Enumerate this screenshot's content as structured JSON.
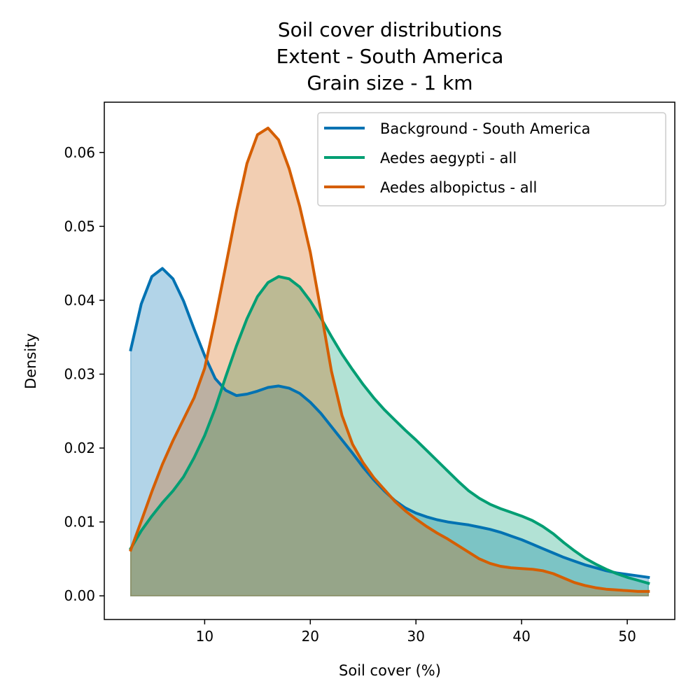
{
  "chart_data": {
    "type": "area",
    "title_lines": [
      "Soil cover distributions",
      "Extent - South America",
      "Grain size - 1 km"
    ],
    "xlabel": "Soil cover (%)",
    "ylabel": "Density",
    "xlim": [
      0.5,
      54.5
    ],
    "ylim": [
      -0.0032,
      0.0668
    ],
    "xticks": [
      10,
      20,
      30,
      40,
      50
    ],
    "xtick_labels": [
      "10",
      "20",
      "30",
      "40",
      "50"
    ],
    "yticks": [
      0.0,
      0.01,
      0.02,
      0.03,
      0.04,
      0.05,
      0.06
    ],
    "ytick_labels": [
      "0.00",
      "0.01",
      "0.02",
      "0.03",
      "0.04",
      "0.05",
      "0.06"
    ],
    "grid": false,
    "legend_position": "top-right",
    "series": [
      {
        "name": "Background - South America",
        "color": "#0072b2",
        "points": [
          [
            3,
            0.0333
          ],
          [
            4,
            0.0395
          ],
          [
            5,
            0.0432
          ],
          [
            6,
            0.0443
          ],
          [
            7,
            0.0429
          ],
          [
            8,
            0.0399
          ],
          [
            9,
            0.0361
          ],
          [
            10,
            0.0325
          ],
          [
            11,
            0.0294
          ],
          [
            12,
            0.0278
          ],
          [
            13,
            0.0271
          ],
          [
            14,
            0.0273
          ],
          [
            15,
            0.0277
          ],
          [
            16,
            0.0282
          ],
          [
            17,
            0.0284
          ],
          [
            18,
            0.0281
          ],
          [
            19,
            0.0274
          ],
          [
            20,
            0.0262
          ],
          [
            21,
            0.0247
          ],
          [
            22,
            0.0229
          ],
          [
            23,
            0.0211
          ],
          [
            24,
            0.0193
          ],
          [
            25,
            0.0174
          ],
          [
            26,
            0.0157
          ],
          [
            27,
            0.0142
          ],
          [
            28,
            0.0129
          ],
          [
            29,
            0.0119
          ],
          [
            30,
            0.0112
          ],
          [
            31,
            0.0107
          ],
          [
            32,
            0.0103
          ],
          [
            33,
            0.01
          ],
          [
            34,
            0.0098
          ],
          [
            35,
            0.0096
          ],
          [
            36,
            0.0093
          ],
          [
            37,
            0.009
          ],
          [
            38,
            0.0086
          ],
          [
            39,
            0.0081
          ],
          [
            40,
            0.0076
          ],
          [
            41,
            0.007
          ],
          [
            42,
            0.0064
          ],
          [
            43,
            0.0058
          ],
          [
            44,
            0.0052
          ],
          [
            45,
            0.0047
          ],
          [
            46,
            0.0042
          ],
          [
            47,
            0.0038
          ],
          [
            48,
            0.0034
          ],
          [
            49,
            0.0031
          ],
          [
            50,
            0.0029
          ],
          [
            51,
            0.0027
          ],
          [
            52,
            0.0025
          ]
        ]
      },
      {
        "name": "Aedes aegypti - all",
        "color": "#009e73",
        "points": [
          [
            3,
            0.0064
          ],
          [
            4,
            0.0088
          ],
          [
            5,
            0.0108
          ],
          [
            6,
            0.0126
          ],
          [
            7,
            0.0142
          ],
          [
            8,
            0.0161
          ],
          [
            9,
            0.0187
          ],
          [
            10,
            0.0217
          ],
          [
            11,
            0.0254
          ],
          [
            12,
            0.0297
          ],
          [
            13,
            0.0338
          ],
          [
            14,
            0.0375
          ],
          [
            15,
            0.0405
          ],
          [
            16,
            0.0424
          ],
          [
            17,
            0.0432
          ],
          [
            18,
            0.0429
          ],
          [
            19,
            0.0418
          ],
          [
            20,
            0.0399
          ],
          [
            21,
            0.0376
          ],
          [
            22,
            0.0351
          ],
          [
            23,
            0.0327
          ],
          [
            24,
            0.0306
          ],
          [
            25,
            0.0286
          ],
          [
            26,
            0.0268
          ],
          [
            27,
            0.0252
          ],
          [
            28,
            0.0238
          ],
          [
            29,
            0.0224
          ],
          [
            30,
            0.0211
          ],
          [
            31,
            0.0197
          ],
          [
            32,
            0.0183
          ],
          [
            33,
            0.0169
          ],
          [
            34,
            0.0155
          ],
          [
            35,
            0.0142
          ],
          [
            36,
            0.0132
          ],
          [
            37,
            0.0124
          ],
          [
            38,
            0.0118
          ],
          [
            39,
            0.0113
          ],
          [
            40,
            0.0108
          ],
          [
            41,
            0.0102
          ],
          [
            42,
            0.0094
          ],
          [
            43,
            0.0084
          ],
          [
            44,
            0.0072
          ],
          [
            45,
            0.0061
          ],
          [
            46,
            0.0051
          ],
          [
            47,
            0.0043
          ],
          [
            48,
            0.0036
          ],
          [
            49,
            0.003
          ],
          [
            50,
            0.0025
          ],
          [
            51,
            0.0021
          ],
          [
            52,
            0.0017
          ]
        ]
      },
      {
        "name": "Aedes albopictus - all",
        "color": "#d55e00",
        "points": [
          [
            3,
            0.0062
          ],
          [
            4,
            0.0101
          ],
          [
            5,
            0.0141
          ],
          [
            6,
            0.0178
          ],
          [
            7,
            0.021
          ],
          [
            8,
            0.0239
          ],
          [
            9,
            0.0268
          ],
          [
            10,
            0.0308
          ],
          [
            11,
            0.0375
          ],
          [
            12,
            0.0447
          ],
          [
            13,
            0.052
          ],
          [
            14,
            0.0585
          ],
          [
            15,
            0.0624
          ],
          [
            16,
            0.0633
          ],
          [
            17,
            0.0617
          ],
          [
            18,
            0.0578
          ],
          [
            19,
            0.0527
          ],
          [
            20,
            0.0465
          ],
          [
            21,
            0.0386
          ],
          [
            22,
            0.0304
          ],
          [
            23,
            0.0244
          ],
          [
            24,
            0.0205
          ],
          [
            25,
            0.018
          ],
          [
            26,
            0.016
          ],
          [
            27,
            0.0144
          ],
          [
            28,
            0.0128
          ],
          [
            29,
            0.0115
          ],
          [
            30,
            0.0104
          ],
          [
            31,
            0.0094
          ],
          [
            32,
            0.0085
          ],
          [
            33,
            0.0077
          ],
          [
            34,
            0.0068
          ],
          [
            35,
            0.0059
          ],
          [
            36,
            0.005
          ],
          [
            37,
            0.0044
          ],
          [
            38,
            0.004
          ],
          [
            39,
            0.0038
          ],
          [
            40,
            0.0037
          ],
          [
            41,
            0.0036
          ],
          [
            42,
            0.0034
          ],
          [
            43,
            0.003
          ],
          [
            44,
            0.0024
          ],
          [
            45,
            0.0018
          ],
          [
            46,
            0.0014
          ],
          [
            47,
            0.0011
          ],
          [
            48,
            0.0009
          ],
          [
            49,
            0.0008
          ],
          [
            50,
            0.0007
          ],
          [
            51,
            0.0006
          ],
          [
            52,
            0.0006
          ]
        ]
      }
    ]
  }
}
